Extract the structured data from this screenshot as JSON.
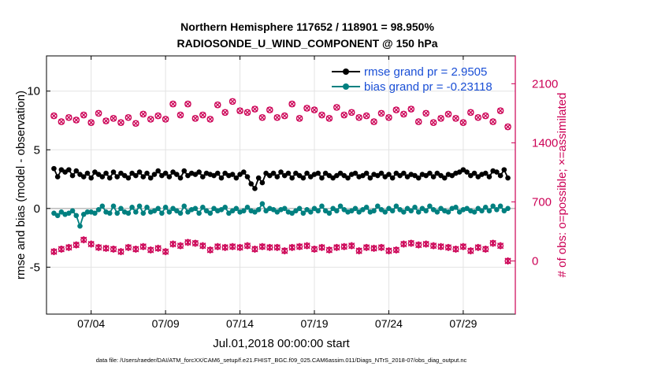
{
  "chart_data": {
    "type": "line",
    "title_line1": "Northern Hemisphere 117652 / 118901 = 98.950%",
    "title_line2": "RADIOSONDE_U_WIND_COMPONENT @ 150 hPa",
    "xlabel": "Jul.01,2018 00:00:00 start",
    "ylabel_left": "rmse and bias (model - observation)",
    "ylabel_right": "# of obs: o=possible; ×=assimilated",
    "x_range_days": [
      0.5,
      32.0
    ],
    "ylim_left": [
      -9,
      13
    ],
    "ylim_right": [
      -630,
      2430
    ],
    "x_ticks": [
      {
        "day": 3.5,
        "label": "07/04"
      },
      {
        "day": 8.5,
        "label": "07/09"
      },
      {
        "day": 13.5,
        "label": "07/14"
      },
      {
        "day": 18.5,
        "label": "07/19"
      },
      {
        "day": 23.5,
        "label": "07/24"
      },
      {
        "day": 28.5,
        "label": "07/29"
      }
    ],
    "y_ticks_left": [
      {
        "value": 10,
        "label": "10"
      },
      {
        "value": 5,
        "label": "5"
      },
      {
        "value": 0,
        "label": "0"
      },
      {
        "value": -5,
        "label": "-5"
      }
    ],
    "y_ticks_right": [
      {
        "value": 2100,
        "label": "2100"
      },
      {
        "value": 1400,
        "label": "1400"
      },
      {
        "value": 700,
        "label": "700"
      },
      {
        "value": 0,
        "label": "0"
      }
    ],
    "legend": [
      {
        "label": "rmse grand pr = 2.9505",
        "color": "#000000"
      },
      {
        "label": "bias grand pr = -0.23118",
        "color": "#008080"
      }
    ],
    "series": [
      {
        "name": "rmse",
        "color": "#000000",
        "axis": "left",
        "times": [
          1.0,
          1.25,
          1.5,
          1.75,
          2.0,
          2.25,
          2.5,
          2.75,
          3.0,
          3.25,
          3.5,
          3.75,
          4.0,
          4.25,
          4.5,
          4.75,
          5.0,
          5.25,
          5.5,
          5.75,
          6.0,
          6.25,
          6.5,
          6.75,
          7.0,
          7.25,
          7.5,
          7.75,
          8.0,
          8.25,
          8.5,
          8.75,
          9.0,
          9.25,
          9.5,
          9.75,
          10.0,
          10.25,
          10.5,
          10.75,
          11.0,
          11.25,
          11.5,
          11.75,
          12.0,
          12.25,
          12.5,
          12.75,
          13.0,
          13.25,
          13.5,
          13.75,
          14.0,
          14.25,
          14.5,
          14.75,
          15.0,
          15.25,
          15.5,
          15.75,
          16.0,
          16.25,
          16.5,
          16.75,
          17.0,
          17.25,
          17.5,
          17.75,
          18.0,
          18.25,
          18.5,
          18.75,
          19.0,
          19.25,
          19.5,
          19.75,
          20.0,
          20.25,
          20.5,
          20.75,
          21.0,
          21.25,
          21.5,
          21.75,
          22.0,
          22.25,
          22.5,
          22.75,
          23.0,
          23.25,
          23.5,
          23.75,
          24.0,
          24.25,
          24.5,
          24.75,
          25.0,
          25.25,
          25.5,
          25.75,
          26.0,
          26.25,
          26.5,
          26.75,
          27.0,
          27.25,
          27.5,
          27.75,
          28.0,
          28.25,
          28.5,
          28.75,
          29.0,
          29.25,
          29.5,
          29.75,
          30.0,
          30.25,
          30.5,
          30.75,
          31.0,
          31.25,
          31.5
        ],
        "values": [
          3.4,
          2.7,
          3.3,
          3.1,
          3.3,
          2.8,
          3.2,
          2.9,
          2.7,
          3.0,
          2.6,
          3.1,
          2.9,
          2.7,
          3.0,
          2.6,
          3.1,
          2.7,
          3.0,
          2.8,
          2.6,
          3.0,
          2.8,
          3.1,
          2.7,
          3.0,
          2.6,
          2.9,
          3.2,
          2.8,
          3.0,
          2.7,
          3.1,
          2.9,
          2.6,
          3.2,
          2.8,
          3.0,
          2.9,
          3.1,
          2.7,
          3.0,
          2.9,
          2.8,
          3.0,
          2.6,
          3.0,
          2.8,
          2.9,
          2.6,
          2.9,
          3.1,
          2.7,
          2.1,
          1.7,
          2.6,
          2.2,
          3.0,
          2.8,
          3.0,
          2.7,
          3.1,
          2.8,
          3.0,
          2.6,
          3.0,
          2.8,
          2.6,
          3.0,
          2.7,
          2.9,
          3.0,
          2.6,
          3.0,
          2.8,
          2.6,
          2.8,
          3.0,
          2.8,
          2.6,
          2.9,
          3.0,
          2.7,
          2.8,
          3.0,
          2.6,
          2.9,
          2.8,
          3.0,
          2.7,
          2.9,
          2.6,
          3.0,
          2.8,
          3.0,
          2.7,
          2.9,
          2.8,
          2.6,
          2.9,
          2.8,
          3.0,
          2.7,
          3.0,
          2.8,
          2.6,
          2.9,
          2.8,
          3.0,
          3.1,
          3.3,
          3.1,
          2.8,
          3.0,
          2.7,
          2.9,
          3.0,
          2.7,
          3.2,
          3.1,
          2.8,
          3.3,
          2.6
        ]
      },
      {
        "name": "bias",
        "color": "#008080",
        "axis": "left",
        "times": [
          1.0,
          1.25,
          1.5,
          1.75,
          2.0,
          2.25,
          2.5,
          2.75,
          3.0,
          3.25,
          3.5,
          3.75,
          4.0,
          4.25,
          4.5,
          4.75,
          5.0,
          5.25,
          5.5,
          5.75,
          6.0,
          6.25,
          6.5,
          6.75,
          7.0,
          7.25,
          7.5,
          7.75,
          8.0,
          8.25,
          8.5,
          8.75,
          9.0,
          9.25,
          9.5,
          9.75,
          10.0,
          10.25,
          10.5,
          10.75,
          11.0,
          11.25,
          11.5,
          11.75,
          12.0,
          12.25,
          12.5,
          12.75,
          13.0,
          13.25,
          13.5,
          13.75,
          14.0,
          14.25,
          14.5,
          14.75,
          15.0,
          15.25,
          15.5,
          15.75,
          16.0,
          16.25,
          16.5,
          16.75,
          17.0,
          17.25,
          17.5,
          17.75,
          18.0,
          18.25,
          18.5,
          18.75,
          19.0,
          19.25,
          19.5,
          19.75,
          20.0,
          20.25,
          20.5,
          20.75,
          21.0,
          21.25,
          21.5,
          21.75,
          22.0,
          22.25,
          22.5,
          22.75,
          23.0,
          23.25,
          23.5,
          23.75,
          24.0,
          24.25,
          24.5,
          24.75,
          25.0,
          25.25,
          25.5,
          25.75,
          26.0,
          26.25,
          26.5,
          26.75,
          27.0,
          27.25,
          27.5,
          27.75,
          28.0,
          28.25,
          28.5,
          28.75,
          29.0,
          29.25,
          29.5,
          29.75,
          30.0,
          30.25,
          30.5,
          30.75,
          31.0,
          31.25,
          31.5
        ],
        "values": [
          -0.4,
          -0.6,
          -0.3,
          -0.5,
          -0.4,
          -0.2,
          -0.6,
          -1.5,
          -0.5,
          -0.3,
          -0.3,
          -0.4,
          -0.1,
          0.2,
          -0.3,
          -0.4,
          0.2,
          -0.4,
          0.0,
          -0.3,
          -0.4,
          0.1,
          -0.3,
          0.2,
          -0.4,
          0.1,
          -0.3,
          -0.2,
          0.0,
          -0.4,
          0.1,
          -0.3,
          0.0,
          -0.2,
          -0.4,
          0.2,
          -0.3,
          -0.1,
          0.0,
          -0.4,
          0.1,
          -0.2,
          -0.4,
          0.0,
          -0.2,
          -0.1,
          0.1,
          -0.4,
          -0.2,
          0.0,
          -0.3,
          -0.2,
          0.1,
          -0.2,
          -0.3,
          -0.1,
          0.4,
          -0.2,
          0.0,
          -0.1,
          -0.3,
          -0.1,
          0.0,
          -0.3,
          -0.4,
          -0.2,
          0.0,
          -0.4,
          -0.1,
          -0.3,
          0.0,
          -0.2,
          0.2,
          -0.2,
          -0.4,
          0.0,
          -0.2,
          0.2,
          -0.1,
          -0.3,
          -0.2,
          0.0,
          -0.3,
          -0.1,
          0.1,
          -0.3,
          -0.2,
          0.2,
          -0.1,
          -0.3,
          0.0,
          -0.2,
          0.2,
          -0.1,
          -0.3,
          0.0,
          -0.2,
          0.1,
          -0.3,
          0.0,
          -0.2,
          0.2,
          -0.1,
          -0.3,
          0.0,
          -0.2,
          -0.3,
          0.0,
          0.1,
          -0.3,
          -0.1,
          0.0,
          -0.2,
          -0.3,
          0.0,
          -0.2,
          0.1,
          -0.2,
          0.2,
          -0.1,
          0.2,
          -0.2,
          0.0
        ]
      },
      {
        "name": "obs_possible",
        "color": "#cc0055",
        "axis": "right",
        "marker": "o",
        "times": [
          1.0,
          1.5,
          2.0,
          2.5,
          3.0,
          3.5,
          4.0,
          4.5,
          5.0,
          5.5,
          6.0,
          6.5,
          7.0,
          7.5,
          8.0,
          8.5,
          9.0,
          9.5,
          10.0,
          10.5,
          11.0,
          11.5,
          12.0,
          12.5,
          13.0,
          13.5,
          14.0,
          14.5,
          15.0,
          15.5,
          16.0,
          16.5,
          17.0,
          17.5,
          18.0,
          18.5,
          19.0,
          19.5,
          20.0,
          20.5,
          21.0,
          21.5,
          22.0,
          22.5,
          23.0,
          23.5,
          24.0,
          24.5,
          25.0,
          25.5,
          26.0,
          26.5,
          27.0,
          27.5,
          28.0,
          28.5,
          29.0,
          29.5,
          30.0,
          30.5,
          31.0,
          31.5
        ],
        "values": [
          1720,
          1650,
          1700,
          1670,
          1730,
          1640,
          1750,
          1660,
          1690,
          1640,
          1700,
          1630,
          1740,
          1680,
          1720,
          1680,
          1860,
          1730,
          1860,
          1690,
          1730,
          1680,
          1850,
          1760,
          1890,
          1780,
          1760,
          1800,
          1700,
          1790,
          1700,
          1720,
          1860,
          1690,
          1810,
          1790,
          1730,
          1690,
          1820,
          1730,
          1760,
          1700,
          1720,
          1650,
          1750,
          1700,
          1790,
          1740,
          1800,
          1650,
          1750,
          1640,
          1690,
          1740,
          1690,
          1640,
          1760,
          1700,
          1720,
          1650,
          1780,
          1590
        ]
      },
      {
        "name": "obs_assimilated",
        "color": "#cc0055",
        "axis": "right",
        "marker": "x",
        "times": [
          1.0,
          1.5,
          2.0,
          2.5,
          3.0,
          3.5,
          4.0,
          4.5,
          5.0,
          5.5,
          6.0,
          6.5,
          7.0,
          7.5,
          8.0,
          8.5,
          9.0,
          9.5,
          10.0,
          10.5,
          11.0,
          11.5,
          12.0,
          12.5,
          13.0,
          13.5,
          14.0,
          14.5,
          15.0,
          15.5,
          16.0,
          16.5,
          17.0,
          17.5,
          18.0,
          18.5,
          19.0,
          19.5,
          20.0,
          20.5,
          21.0,
          21.5,
          22.0,
          22.5,
          23.0,
          23.5,
          24.0,
          24.5,
          25.0,
          25.5,
          26.0,
          26.5,
          27.0,
          27.5,
          28.0,
          28.5,
          29.0,
          29.5,
          30.0,
          30.5,
          31.0,
          31.5
        ],
        "values": [
          110,
          140,
          160,
          190,
          250,
          200,
          160,
          150,
          140,
          110,
          160,
          140,
          170,
          130,
          150,
          110,
          200,
          180,
          220,
          210,
          180,
          130,
          170,
          160,
          170,
          160,
          180,
          140,
          170,
          160,
          160,
          120,
          160,
          170,
          180,
          140,
          160,
          130,
          160,
          170,
          180,
          120,
          160,
          150,
          160,
          120,
          130,
          200,
          210,
          190,
          200,
          180,
          170,
          160,
          140,
          170,
          120,
          160,
          140,
          210,
          180,
          0
        ]
      }
    ],
    "footer": "data file: /Users/raeder/DAI/ATM_forcXX/CAM6_setup/f.e21.FHIST_BGC.f09_025.CAM6assim.011/Diags_NTrS_2018-07/obs_diag_output.nc"
  }
}
